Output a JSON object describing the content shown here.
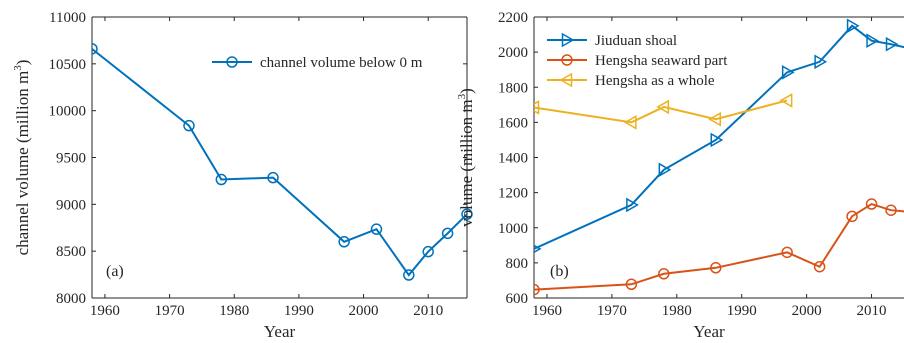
{
  "chart_data": [
    {
      "type": "line",
      "panel_label": "(a)",
      "xlabel": "Year",
      "ylabel": "channel volume (million m",
      "ylabel_sup": "3",
      "ylabel_close": ")",
      "xlim": [
        1958,
        2016
      ],
      "ylim": [
        8000,
        11000
      ],
      "xticks": [
        1960,
        1970,
        1980,
        1990,
        2000,
        2010
      ],
      "yticks": [
        8000,
        8500,
        9000,
        9500,
        10000,
        10500,
        11000
      ],
      "grid": false,
      "legend_position": "top-right",
      "series": [
        {
          "name": "channel volume below 0 m",
          "color": "#0072BD",
          "marker": "circle",
          "x": [
            1958,
            1973,
            1978,
            1986,
            1997,
            2002,
            2007,
            2010,
            2013,
            2016
          ],
          "y": [
            10660,
            9840,
            9265,
            9285,
            8600,
            8735,
            8245,
            8495,
            8690,
            8895
          ]
        }
      ]
    },
    {
      "type": "line",
      "panel_label": "(b)",
      "xlabel": "Year",
      "ylabel": "volume (million m",
      "ylabel_sup": "3",
      "ylabel_close": ")",
      "xlim": [
        1958,
        2015
      ],
      "ylim": [
        600,
        2200
      ],
      "xticks": [
        1960,
        1970,
        1980,
        1990,
        2000,
        2010
      ],
      "yticks": [
        600,
        800,
        1000,
        1200,
        1400,
        1600,
        1800,
        2000,
        2200
      ],
      "grid": false,
      "legend_position": "top-left",
      "series": [
        {
          "name": "Jiuduan shoal",
          "color": "#0072BD",
          "marker": "triangle-right",
          "x": [
            1958,
            1973,
            1978,
            1986,
            1997,
            2002,
            2007,
            2010,
            2013,
            2016
          ],
          "y": [
            880,
            1130,
            1330,
            1500,
            1885,
            1945,
            2150,
            2065,
            2045,
            2020
          ]
        },
        {
          "name": "Hengsha seaward part",
          "color": "#D95319",
          "marker": "circle",
          "x": [
            1958,
            1973,
            1978,
            1986,
            1997,
            2002,
            2007,
            2010,
            2013,
            2016
          ],
          "y": [
            648,
            678,
            738,
            772,
            860,
            778,
            1065,
            1135,
            1100,
            1090
          ]
        },
        {
          "name": "Hengsha as a whole",
          "color": "#EDB120",
          "marker": "triangle-left",
          "x": [
            1958,
            1973,
            1978,
            1986,
            1997
          ],
          "y": [
            1685,
            1600,
            1688,
            1618,
            1725
          ]
        }
      ]
    }
  ]
}
